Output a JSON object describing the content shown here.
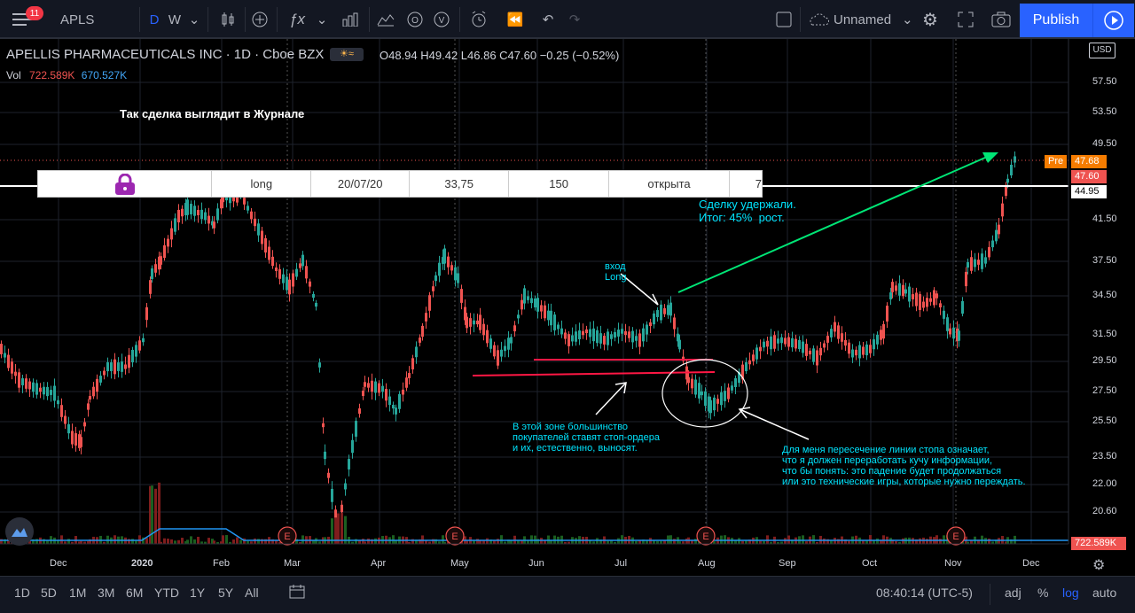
{
  "toolbar": {
    "notifications": "11",
    "symbol": "APLS",
    "interval": "D",
    "interval2": "W",
    "layout_name": "Unnamed",
    "publish_label": "Publish"
  },
  "legend": {
    "title": "APELLIS PHARMACEUTICALS INC · 1D · Cboe BZX",
    "ohlc": "O48.94 H49.42 L46.86 C47.60 −0.25 (−0.52%)",
    "vol_label": "Vol",
    "vol_1": "722.589K",
    "vol_2": "670.527K"
  },
  "journal": {
    "heading": "Так сделка выглядит в Журнале",
    "cells": [
      "long",
      "20/07/20",
      "33,75",
      "150",
      "открыта",
      "7"
    ]
  },
  "annotations": {
    "held": "Сделку удержали.\nИтог: 45%  рост.",
    "entry": "вход\nLong",
    "stop_zone": "В этой зоне большинство\nпокупателей ставят стоп-ордера\nи их, естественно, выносят.",
    "explanation": "Для меня пересечение линии стопа означает,\nчто я должен переработать кучу информации,\nчто бы понять: это падение будет продолжаться\nили это технические игры, которые нужно переждать."
  },
  "price_axis": {
    "currency": "USD",
    "ticks": [
      "57.50",
      "53.50",
      "49.50",
      "44.95",
      "41.50",
      "37.50",
      "34.50",
      "31.50",
      "29.50",
      "27.50",
      "25.50",
      "23.50",
      "22.00",
      "20.60"
    ],
    "pre_label": "Pre",
    "pre_value": "47.68",
    "last_value": "47.60",
    "volume_value": "722.589K"
  },
  "time_axis": [
    "Dec",
    "2020",
    "Feb",
    "Mar",
    "Apr",
    "May",
    "Jun",
    "Jul",
    "Aug",
    "Sep",
    "Oct",
    "Nov",
    "Dec"
  ],
  "earnings_marker": "E",
  "timeframes": [
    "1D",
    "5D",
    "1M",
    "3M",
    "6M",
    "YTD",
    "1Y",
    "5Y",
    "All"
  ],
  "status": {
    "clock": "08:40:14 (UTC-5)",
    "adj": "adj",
    "pct": "%",
    "log": "log",
    "auto": "auto"
  },
  "colors": {
    "up": "#26a69a",
    "down": "#ef5350",
    "accent": "#2962ff",
    "note": "#00e5ff",
    "arrow": "#00e676",
    "journal_lock": "#9c27b0"
  }
}
